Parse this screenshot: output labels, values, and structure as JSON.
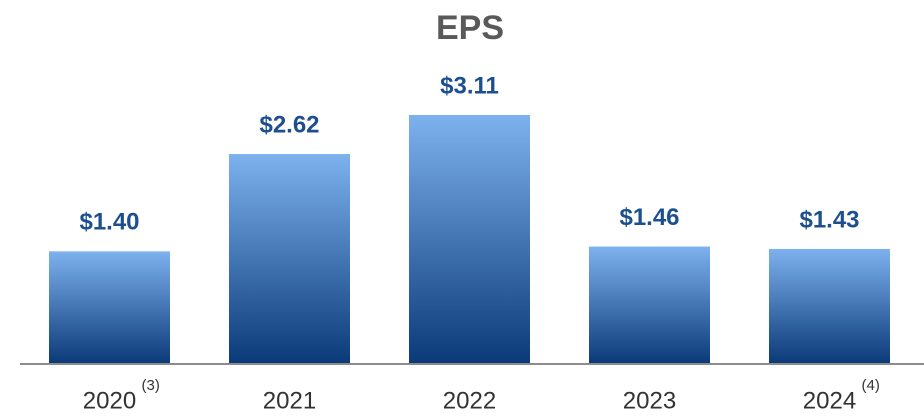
{
  "chart_data": {
    "type": "bar",
    "title": "EPS",
    "categories": [
      "2020",
      "2021",
      "2022",
      "2023",
      "2024"
    ],
    "category_notes": [
      "(3)",
      null,
      null,
      null,
      "(4)"
    ],
    "values": [
      1.4,
      2.62,
      3.11,
      1.46,
      1.43
    ],
    "value_labels": [
      "$1.40",
      "$2.62",
      "$3.11",
      "$1.46",
      "$1.43"
    ],
    "gradient_colors": [
      "#7db2ee",
      "#0b3a78"
    ],
    "label_color": "#1d4f8f",
    "ylim": [
      0,
      4
    ]
  }
}
